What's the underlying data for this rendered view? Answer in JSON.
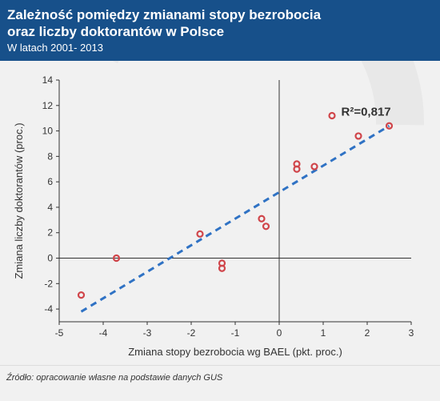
{
  "header": {
    "title_line1": "Zależność pomiędzy zmianami stopy bezrobocia",
    "title_line2": "oraz liczby doktorantów w Polsce",
    "subtitle": "W latach 2001- 2013"
  },
  "source": "Źródło: opracowanie własne na podstawie danych GUS",
  "colors": {
    "header_bg": "#17508a",
    "point": "#d0454a",
    "trend": "#2f72c4",
    "axis": "#333333"
  },
  "chart_data": {
    "type": "scatter",
    "xlabel": "Zmiana stopy bezrobocia wg BAEL (pkt. proc.)",
    "ylabel": "Zmiana liczby doktorantów (proc.)",
    "xlim": [
      -5,
      3
    ],
    "ylim": [
      -5,
      14
    ],
    "xticks": [
      -5,
      -4,
      -3,
      -2,
      -1,
      0,
      1,
      2,
      3
    ],
    "yticks": [
      -4,
      -2,
      0,
      2,
      4,
      6,
      8,
      10,
      12,
      14
    ],
    "grid": false,
    "annotation": {
      "label": "R²=0,817",
      "x": 2.1,
      "y": 11.5
    },
    "trendline": {
      "x": [
        -4.5,
        2.5
      ],
      "y": [
        -4.2,
        10.4
      ]
    },
    "points": [
      {
        "x": -4.5,
        "y": -2.9
      },
      {
        "x": -3.7,
        "y": 0.0
      },
      {
        "x": -1.8,
        "y": 1.9
      },
      {
        "x": -1.3,
        "y": -0.4
      },
      {
        "x": -1.3,
        "y": -0.8
      },
      {
        "x": -0.4,
        "y": 3.1
      },
      {
        "x": -0.3,
        "y": 2.5
      },
      {
        "x": 0.4,
        "y": 7.4
      },
      {
        "x": 0.4,
        "y": 7.0
      },
      {
        "x": 0.8,
        "y": 7.2
      },
      {
        "x": 1.2,
        "y": 11.2
      },
      {
        "x": 1.8,
        "y": 9.6
      },
      {
        "x": 2.5,
        "y": 10.4
      }
    ]
  }
}
